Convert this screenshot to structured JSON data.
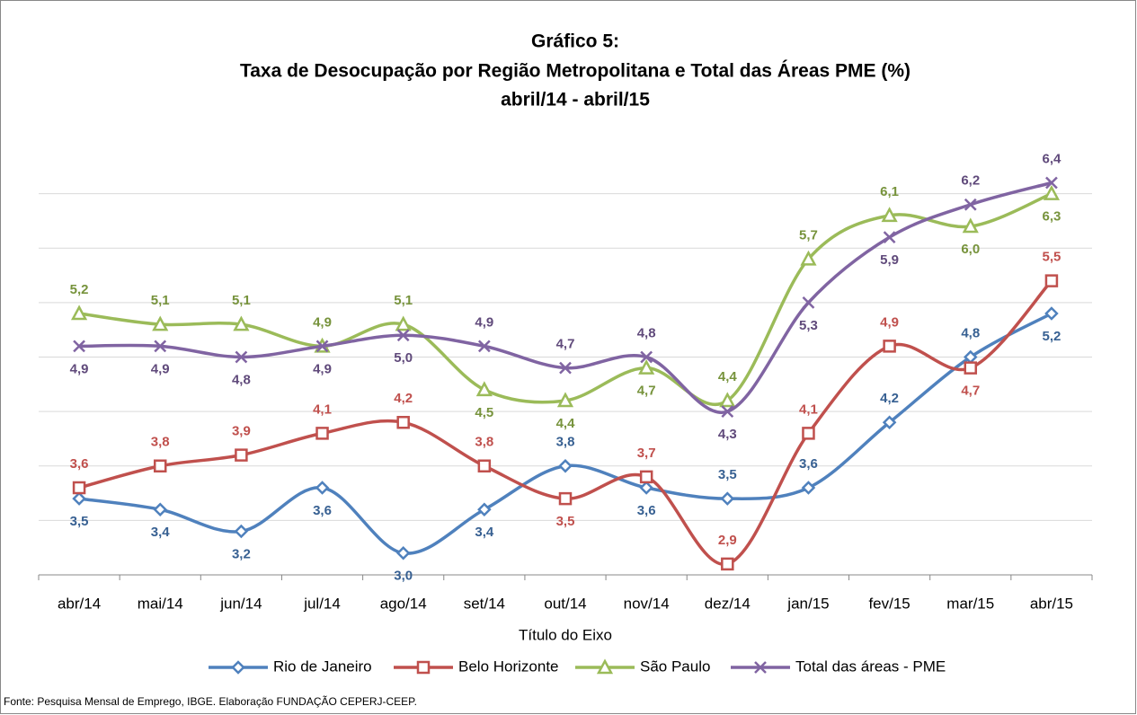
{
  "chart_data": {
    "type": "line",
    "title": [
      "Gráfico 5:",
      "Taxa de Desocupação por Região Metropolitana e Total das Áreas PME (%)",
      "abril/14 - abril/15"
    ],
    "x_label": "Título do Eixo",
    "source": "Fonte: Pesquisa Mensal de Emprego, IBGE. Elaboração FUNDAÇÃO CEPERJ-CEEP.",
    "categories": [
      "abr/14",
      "mai/14",
      "jun/14",
      "jul/14",
      "ago/14",
      "set/14",
      "out/14",
      "nov/14",
      "dez/14",
      "jan/15",
      "fev/15",
      "mar/15",
      "abr/15"
    ],
    "ylim": [
      2.8,
      6.8
    ],
    "yticks": [
      3.3,
      3.8,
      4.3,
      4.8,
      5.3,
      5.8,
      6.3
    ],
    "grid": true,
    "legend": "bottom",
    "series": [
      {
        "name": "Rio de Janeiro",
        "color": "#4f81bd",
        "marker": "diamond",
        "values": [
          3.5,
          3.4,
          3.2,
          3.6,
          3.0,
          3.4,
          3.8,
          3.6,
          3.5,
          3.6,
          4.2,
          4.8,
          5.2
        ],
        "value_labels": [
          "3,5",
          "3,4",
          "3,2",
          "3,6",
          "3,0",
          "3,4",
          "3,8",
          "3,6",
          "3,5",
          "3,6",
          "4,2",
          "4,8",
          "5,2"
        ]
      },
      {
        "name": "Belo Horizonte",
        "color": "#c0504d",
        "marker": "square",
        "values": [
          3.6,
          3.8,
          3.9,
          4.1,
          4.2,
          3.8,
          3.5,
          3.7,
          2.9,
          4.1,
          4.9,
          4.7,
          5.5
        ],
        "value_labels": [
          "3,6",
          "3,8",
          "3,9",
          "4,1",
          "4,2",
          "3,8",
          "3,5",
          "3,7",
          "2,9",
          "4,1",
          "4,9",
          "4,7",
          "5,5"
        ]
      },
      {
        "name": "São Paulo",
        "color": "#9bbb59",
        "marker": "triangle",
        "values": [
          5.2,
          5.1,
          5.1,
          4.9,
          5.1,
          4.5,
          4.4,
          4.7,
          4.4,
          5.7,
          6.1,
          6.0,
          6.3
        ],
        "value_labels": [
          "5,2",
          "5,1",
          "5,1",
          "4,9",
          "5,1",
          "4,5",
          "4,4",
          "4,7",
          "4,4",
          "5,7",
          "6,1",
          "6,0",
          "6,3"
        ]
      },
      {
        "name": "Total das áreas - PME",
        "color": "#8064a2",
        "marker": "x",
        "values": [
          4.9,
          4.9,
          4.8,
          4.9,
          5.0,
          4.9,
          4.7,
          4.8,
          4.3,
          5.3,
          5.9,
          6.2,
          6.4
        ],
        "value_labels": [
          "4,9",
          "4,9",
          "4,8",
          "4,9",
          "5,0",
          "4,9",
          "4,7",
          "4,8",
          "4,3",
          "5,3",
          "5,9",
          "6,2",
          "6,4"
        ]
      }
    ]
  }
}
